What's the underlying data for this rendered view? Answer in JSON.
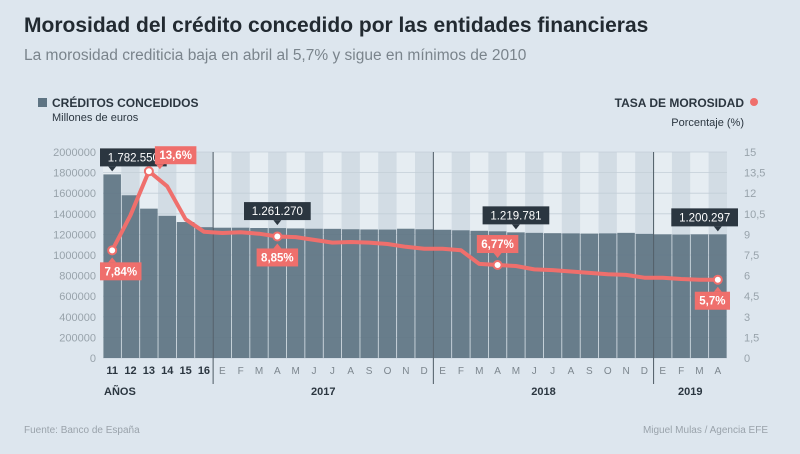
{
  "title": "Morosidad del crédito concedido por las entidades financieras",
  "subtitle": "La morosidad crediticia baja en abril al 5,7% y sigue en mínimos de 2010",
  "legend_left": {
    "name": "CRÉDITOS CONCEDIDOS",
    "unit": "Millones de euros"
  },
  "legend_right": {
    "name": "TASA DE MOROSIDAD",
    "unit": "Porcentaje (%)"
  },
  "source": "Fuente: Banco de España",
  "credit": "Miguel Mulas / Agencia EFE",
  "colors": {
    "bar": "#5e7483",
    "line": "#ef6f6c",
    "background": "#dde6ee",
    "callout_dark": "#2b3640",
    "callout_red": "#ef6f6c"
  },
  "chart_data": {
    "type": "bar+line",
    "title": "Morosidad del crédito concedido por las entidades financieras",
    "categories": [
      "11",
      "12",
      "13",
      "14",
      "15",
      "16",
      "E",
      "F",
      "M",
      "A",
      "M",
      "J",
      "J",
      "A",
      "S",
      "O",
      "N",
      "D",
      "E",
      "F",
      "M",
      "A",
      "M",
      "J",
      "J",
      "A",
      "S",
      "O",
      "N",
      "D",
      "E",
      "F",
      "M",
      "A"
    ],
    "year_labels": [
      {
        "label": "AÑOS",
        "start": 0,
        "end": 0
      },
      {
        "label": "2017",
        "start": 6,
        "end": 17
      },
      {
        "label": "2018",
        "start": 18,
        "end": 29
      },
      {
        "label": "2019",
        "start": 30,
        "end": 33
      }
    ],
    "series": [
      {
        "name": "CRÉDITOS CONCEDIDOS",
        "axis": "left",
        "unit": "Millones de euros",
        "values": [
          1782550,
          1580000,
          1450000,
          1380000,
          1320000,
          1270000,
          1265000,
          1265000,
          1262000,
          1261270,
          1258000,
          1255000,
          1254000,
          1250000,
          1248000,
          1247000,
          1255000,
          1250000,
          1245000,
          1240000,
          1235000,
          1230000,
          1219781,
          1215000,
          1212000,
          1210000,
          1208000,
          1210000,
          1215000,
          1205000,
          1200000,
          1198000,
          1200000,
          1200297
        ]
      },
      {
        "name": "TASA DE MOROSIDAD",
        "axis": "right",
        "unit": "Porcentaje (%)",
        "values": [
          7.84,
          10.4,
          13.6,
          12.5,
          10.1,
          9.2,
          9.1,
          9.15,
          9.05,
          8.85,
          8.8,
          8.6,
          8.4,
          8.45,
          8.4,
          8.3,
          8.1,
          7.95,
          7.95,
          7.85,
          6.85,
          6.77,
          6.7,
          6.45,
          6.4,
          6.3,
          6.2,
          6.1,
          6.05,
          5.85,
          5.85,
          5.75,
          5.7,
          5.7
        ]
      }
    ],
    "annotations": [
      {
        "series": "CRÉDITOS CONCEDIDOS",
        "index": 0,
        "text": "1.782.550"
      },
      {
        "series": "CRÉDITOS CONCEDIDOS",
        "index": 9,
        "text": "1.261.270"
      },
      {
        "series": "CRÉDITOS CONCEDIDOS",
        "index": 22,
        "text": "1.219.781"
      },
      {
        "series": "CRÉDITOS CONCEDIDOS",
        "index": 33,
        "text": "1.200.297"
      },
      {
        "series": "TASA DE MOROSIDAD",
        "index": 0,
        "text": "7,84%"
      },
      {
        "series": "TASA DE MOROSIDAD",
        "index": 2,
        "text": "13,6%"
      },
      {
        "series": "TASA DE MOROSIDAD",
        "index": 9,
        "text": "8,85%"
      },
      {
        "series": "TASA DE MOROSIDAD",
        "index": 21,
        "text": "6,77%"
      },
      {
        "series": "TASA DE MOROSIDAD",
        "index": 33,
        "text": "5,7%"
      }
    ],
    "y_left": {
      "ticks": [
        0,
        200000,
        400000,
        600000,
        800000,
        1000000,
        1200000,
        1400000,
        1600000,
        1800000,
        2000000
      ],
      "range": [
        0,
        2000000
      ]
    },
    "y_right": {
      "ticks": [
        "0",
        "1,5",
        "3",
        "4,5",
        "6",
        "7,5",
        "9",
        "10,5",
        "12",
        "13,5",
        "15"
      ],
      "range": [
        0,
        15
      ]
    }
  }
}
